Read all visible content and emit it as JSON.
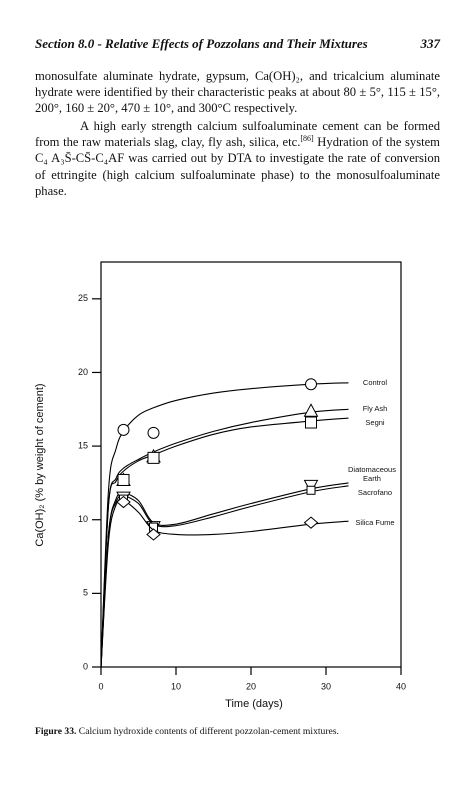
{
  "header": {
    "title": "Section 8.0 - Relative Effects of Pozzolans and Their Mixtures",
    "page": "337"
  },
  "paragraphs": [
    [
      "monosulfate aluminate hydrate, gypsum, Ca(OH)₂, and tricalcium aluminate hydrate were identified by their characteristic peaks at about 80 ± 5°, 115 ± 15°, 200°, 160 ± 20°, 470 ± 10°, and 300°C respectively."
    ],
    [
      "A high early strength calcium sulfoaluminate cement can be formed from the raw materials slag, clay, fly ash, silica, etc.",
      "[86]",
      " Hydration of the system C₄ A₃S̄-CS̄-C₄AF was carried out by DTA to investigate the rate of conversion of ettringite (high calcium sulfoaluminate phase) to the monosulfoaluminate phase."
    ]
  ],
  "chart_data": {
    "type": "line",
    "x_label": "Time (days)",
    "y_label": "Ca(OH)₂ (% by weight of cement)",
    "xlim": [
      0,
      40
    ],
    "ylim": [
      0,
      27.5
    ],
    "xticks": [
      0,
      10,
      20,
      30,
      40
    ],
    "yticks": [
      0,
      5,
      10,
      15,
      20,
      25
    ],
    "color": "#000000",
    "series": [
      {
        "name": "Control",
        "marker": "circle",
        "x": [
          3,
          7,
          28
        ],
        "values": [
          16.1,
          15.9,
          19.2
        ],
        "curve_x": [
          0,
          1,
          2,
          3,
          5,
          7,
          10,
          15,
          20,
          28,
          33
        ],
        "curve_values": [
          0,
          12,
          14.8,
          16,
          17.1,
          17.6,
          18.1,
          18.6,
          18.9,
          19.2,
          19.3
        ]
      },
      {
        "name": "Fly Ash",
        "marker": "triangle",
        "x": [
          3,
          7,
          28
        ],
        "values": [
          12.7,
          14.3,
          17.4
        ],
        "curve_x": [
          0,
          1,
          2,
          3,
          5,
          7,
          10,
          15,
          20,
          28,
          33
        ],
        "curve_values": [
          0,
          11,
          12.8,
          13.5,
          14.1,
          14.6,
          15.2,
          16,
          16.6,
          17.3,
          17.5
        ]
      },
      {
        "name": "Segni",
        "marker": "square",
        "x": [
          3,
          7,
          28
        ],
        "values": [
          12.7,
          14.2,
          16.6
        ],
        "curve_x": [
          0,
          1,
          2,
          3,
          5,
          7,
          10,
          15,
          20,
          28,
          33
        ],
        "curve_values": [
          0,
          11,
          12.6,
          13.3,
          14,
          14.4,
          15,
          15.8,
          16.3,
          16.7,
          16.9
        ]
      },
      {
        "name": "Diatomaceous Earth",
        "marker": "triangle-down",
        "x": [
          3,
          7,
          28
        ],
        "values": [
          11.5,
          9.5,
          12.3
        ],
        "curve_x": [
          0,
          1,
          2,
          3,
          5,
          7,
          10,
          15,
          20,
          28,
          33
        ],
        "curve_values": [
          0,
          9,
          11.4,
          11.8,
          11.3,
          9.8,
          9.7,
          10.4,
          11.1,
          12.1,
          12.5
        ]
      },
      {
        "name": "Sacrofano",
        "marker": "square-small",
        "x": [
          3,
          7,
          28
        ],
        "values": [
          11.4,
          9.5,
          12.0
        ],
        "curve_x": [
          0,
          1,
          2,
          3,
          5,
          7,
          10,
          15,
          20,
          28,
          33
        ],
        "curve_values": [
          0,
          9,
          11.2,
          11.6,
          11.1,
          9.7,
          9.6,
          10.2,
          10.9,
          11.9,
          12.3
        ]
      },
      {
        "name": "Silica Fume",
        "marker": "diamond",
        "x": [
          3,
          7,
          28
        ],
        "values": [
          11.2,
          9.0,
          9.8
        ],
        "curve_x": [
          0,
          1,
          2,
          3,
          5,
          7,
          10,
          15,
          20,
          28,
          33
        ],
        "curve_values": [
          0,
          8.5,
          11,
          11.3,
          10.5,
          9.3,
          9,
          9,
          9.2,
          9.7,
          9.9
        ]
      }
    ]
  },
  "caption": {
    "label": "Figure 33.",
    "text": " Calcium hydroxide contents of different pozzolan-cement mixtures."
  }
}
